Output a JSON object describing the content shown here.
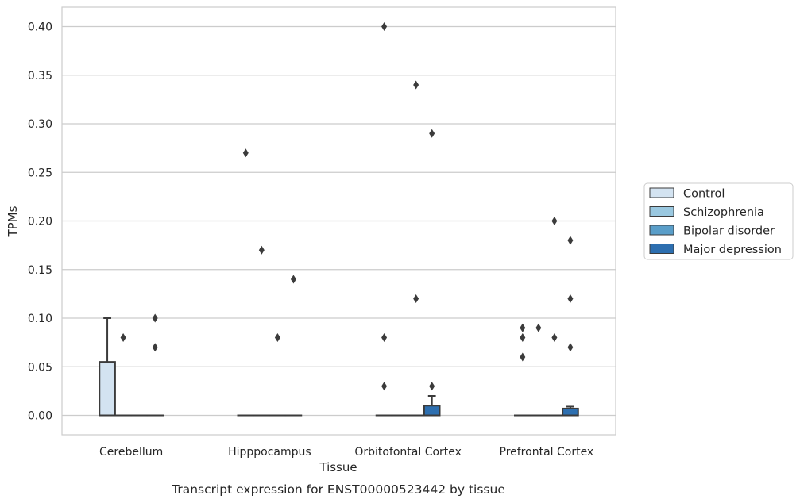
{
  "caption": "Transcript expression for ENST00000523442 by tissue",
  "chart_data": {
    "type": "box",
    "xlabel": "Tissue",
    "ylabel": "TPMs",
    "ylim": [
      -0.02,
      0.42
    ],
    "yticks": [
      "0.00",
      "0.05",
      "0.10",
      "0.15",
      "0.20",
      "0.25",
      "0.30",
      "0.35",
      "0.40"
    ],
    "grid": "horizontal",
    "legend_position": "right",
    "categories": [
      "Cerebellum",
      "Hipppocampus",
      "Orbitofontal Cortex",
      "Prefrontal Cortex"
    ],
    "series": [
      {
        "name": "Control",
        "color": "#d3e3f1",
        "boxes": [
          {
            "q1": 0,
            "median": 0,
            "q3": 0.055,
            "whisker_low": 0,
            "whisker_high": 0.1,
            "outliers": []
          },
          {
            "q1": 0,
            "median": 0,
            "q3": 0,
            "whisker_low": 0,
            "whisker_high": 0,
            "outliers": [
              0.27
            ]
          },
          {
            "q1": 0,
            "median": 0,
            "q3": 0,
            "whisker_low": 0,
            "whisker_high": 0,
            "outliers": [
              0.4,
              0.08,
              0.03
            ]
          },
          {
            "q1": 0,
            "median": 0,
            "q3": 0,
            "whisker_low": 0,
            "whisker_high": 0,
            "outliers": [
              0.09,
              0.08,
              0.06
            ]
          }
        ]
      },
      {
        "name": "Schizophrenia",
        "color": "#9ac8e0",
        "boxes": [
          {
            "q1": 0,
            "median": 0,
            "q3": 0,
            "whisker_low": 0,
            "whisker_high": 0,
            "outliers": [
              0.08
            ]
          },
          {
            "q1": 0,
            "median": 0,
            "q3": 0,
            "whisker_low": 0,
            "whisker_high": 0,
            "outliers": [
              0.17
            ]
          },
          {
            "q1": 0,
            "median": 0,
            "q3": 0,
            "whisker_low": 0,
            "whisker_high": 0,
            "outliers": []
          },
          {
            "q1": 0,
            "median": 0,
            "q3": 0,
            "whisker_low": 0,
            "whisker_high": 0,
            "outliers": [
              0.09
            ]
          }
        ]
      },
      {
        "name": "Bipolar disorder",
        "color": "#5a9ec9",
        "boxes": [
          {
            "q1": 0,
            "median": 0,
            "q3": 0,
            "whisker_low": 0,
            "whisker_high": 0,
            "outliers": []
          },
          {
            "q1": 0,
            "median": 0,
            "q3": 0,
            "whisker_low": 0,
            "whisker_high": 0,
            "outliers": [
              0.08
            ]
          },
          {
            "q1": 0,
            "median": 0,
            "q3": 0,
            "whisker_low": 0,
            "whisker_high": 0,
            "outliers": [
              0.34,
              0.12
            ]
          },
          {
            "q1": 0,
            "median": 0,
            "q3": 0,
            "whisker_low": 0,
            "whisker_high": 0,
            "outliers": [
              0.2,
              0.08
            ]
          }
        ]
      },
      {
        "name": "Major depression",
        "color": "#2d6fb0",
        "boxes": [
          {
            "q1": 0,
            "median": 0,
            "q3": 0,
            "whisker_low": 0,
            "whisker_high": 0,
            "outliers": [
              0.1,
              0.07
            ]
          },
          {
            "q1": 0,
            "median": 0,
            "q3": 0,
            "whisker_low": 0,
            "whisker_high": 0,
            "outliers": [
              0.14
            ]
          },
          {
            "q1": 0,
            "median": 0,
            "q3": 0.01,
            "whisker_low": 0,
            "whisker_high": 0.02,
            "outliers": [
              0.29,
              0.03
            ]
          },
          {
            "q1": 0,
            "median": 0,
            "q3": 0.007,
            "whisker_low": 0,
            "whisker_high": 0.009,
            "outliers": [
              0.18,
              0.12,
              0.07
            ]
          }
        ]
      }
    ]
  }
}
